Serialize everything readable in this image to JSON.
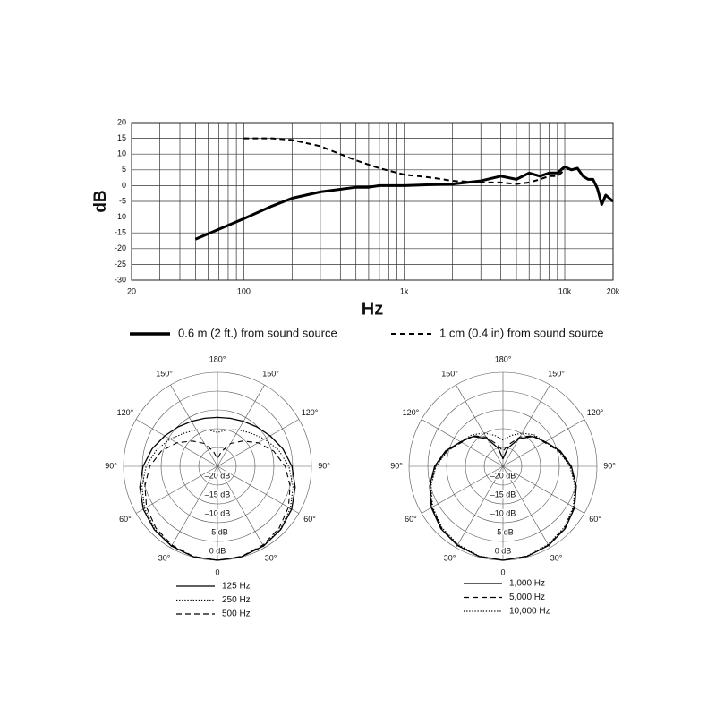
{
  "chart_data": [
    {
      "type": "line",
      "ylabel": "dB",
      "xlabel": "Hz",
      "xscale": "log",
      "grid": true,
      "xlim": [
        20,
        20000
      ],
      "ylim": [
        -30,
        20
      ],
      "xticks": [
        20,
        100,
        {
          "value": 1000,
          "label": "1k"
        },
        {
          "value": 10000,
          "label": "10k"
        },
        {
          "value": 20000,
          "label": "20k"
        }
      ],
      "xminor": [
        30,
        40,
        50,
        60,
        70,
        80,
        90,
        200,
        300,
        400,
        500,
        600,
        700,
        800,
        900,
        2000,
        3000,
        4000,
        5000,
        6000,
        7000,
        8000,
        9000
      ],
      "yticks": [
        20,
        15,
        10,
        5,
        0,
        -5,
        -10,
        -15,
        -20,
        -25,
        -30
      ],
      "series": [
        {
          "name": "0.6 m (2 ft.) from sound source",
          "color": "#000000",
          "style": "solid",
          "x": [
            50,
            100,
            150,
            200,
            300,
            500,
            600,
            700,
            1000,
            1500,
            2000,
            3000,
            4000,
            5000,
            6000,
            7000,
            8000,
            9000,
            10000,
            11000,
            12000,
            13000,
            14000,
            15000,
            16000,
            17000,
            18000,
            20000
          ],
          "values": [
            -17,
            -10.5,
            -6.5,
            -4,
            -2,
            -0.5,
            -0.5,
            0,
            0,
            0.3,
            0.5,
            1.5,
            3,
            2,
            4,
            3,
            4,
            4,
            6,
            5,
            5.5,
            3,
            2,
            2,
            -1,
            -6,
            -3,
            -5
          ]
        },
        {
          "name": "1 cm (0.4 in) from sound source",
          "color": "#000000",
          "style": "dashed",
          "x": [
            100,
            150,
            200,
            300,
            500,
            700,
            1000,
            1500,
            2000,
            3000,
            4000,
            5000,
            6000,
            7000,
            8000,
            9000,
            10000
          ],
          "values": [
            15,
            15,
            14.5,
            12.5,
            8,
            5.5,
            3.5,
            2.5,
            1.5,
            1,
            1,
            0.5,
            1,
            2,
            3,
            3,
            5
          ]
        }
      ]
    },
    {
      "type": "polar",
      "rlim": [
        -25,
        0
      ],
      "rticks": [
        {
          "value": 0,
          "label": "0 dB"
        },
        {
          "value": -5,
          "label": "–5 dB"
        },
        {
          "value": -10,
          "label": "–10 dB"
        },
        {
          "value": -15,
          "label": "–15 dB"
        },
        {
          "value": -20,
          "label": "–20 dB"
        }
      ],
      "angle_ticks": [
        0,
        {
          "value": 30,
          "label": "30°"
        },
        {
          "value": 60,
          "label": "60°"
        },
        {
          "value": 90,
          "label": "90°"
        },
        {
          "value": 120,
          "label": "120°"
        },
        {
          "value": 150,
          "label": "150°"
        },
        {
          "value": 180,
          "label": "180°"
        }
      ],
      "angles": [
        0,
        15,
        30,
        45,
        60,
        75,
        90,
        105,
        120,
        135,
        150,
        165,
        180,
        195,
        210,
        225,
        240,
        255,
        270,
        285,
        300,
        315,
        330,
        345
      ],
      "series": [
        {
          "name": "125 Hz",
          "color": "#000000",
          "style": "solid",
          "values": [
            0,
            -0.1,
            -0.5,
            -1.2,
            -2.2,
            -3.6,
            -5.2,
            -7,
            -8.8,
            -10.2,
            -11.2,
            -11.8,
            -12,
            -11.8,
            -11.2,
            -10.2,
            -8.8,
            -7,
            -5.2,
            -3.6,
            -2.2,
            -1.2,
            -0.5,
            -0.1
          ]
        },
        {
          "name": "250 Hz",
          "color": "#000000",
          "style": "dotted",
          "values": [
            0,
            -0.1,
            -0.6,
            -1.4,
            -2.6,
            -4.2,
            -6,
            -8.2,
            -10.5,
            -12.5,
            -13.8,
            -15,
            -16,
            -15,
            -13.8,
            -12.5,
            -10.5,
            -8.2,
            -6,
            -4.2,
            -2.6,
            -1.4,
            -0.6,
            -0.1
          ]
        },
        {
          "name": "500 Hz",
          "color": "#000000",
          "style": "dashed",
          "values": [
            0,
            -0.2,
            -0.8,
            -1.8,
            -3.2,
            -5,
            -7,
            -9.5,
            -12.5,
            -15.5,
            -18,
            -21,
            -23,
            -21,
            -18,
            -15.5,
            -12.5,
            -9.5,
            -7,
            -5,
            -3.2,
            -1.8,
            -0.8,
            -0.2
          ]
        }
      ]
    },
    {
      "type": "polar",
      "rlim": [
        -25,
        0
      ],
      "rticks": [
        {
          "value": 0,
          "label": "0 dB"
        },
        {
          "value": -5,
          "label": "–5 dB"
        },
        {
          "value": -10,
          "label": "–10 dB"
        },
        {
          "value": -15,
          "label": "–15 dB"
        },
        {
          "value": -20,
          "label": "–20 dB"
        }
      ],
      "angle_ticks": [
        0,
        {
          "value": 30,
          "label": "30°"
        },
        {
          "value": 60,
          "label": "60°"
        },
        {
          "value": 90,
          "label": "90°"
        },
        {
          "value": 120,
          "label": "120°"
        },
        {
          "value": 150,
          "label": "150°"
        },
        {
          "value": 180,
          "label": "180°"
        }
      ],
      "angles": [
        0,
        15,
        30,
        45,
        60,
        75,
        90,
        105,
        120,
        135,
        150,
        165,
        180,
        195,
        210,
        225,
        240,
        255,
        270,
        285,
        300,
        315,
        330,
        345
      ],
      "series": [
        {
          "name": "1,000 Hz",
          "color": "#000000",
          "style": "solid",
          "values": [
            0,
            -0.2,
            -0.7,
            -1.6,
            -3,
            -4.8,
            -6.8,
            -9.2,
            -12,
            -13.8,
            -16.5,
            -20,
            -23,
            -20,
            -16.5,
            -13.8,
            -12,
            -9.2,
            -6.8,
            -4.8,
            -3,
            -1.6,
            -0.7,
            -0.2
          ]
        },
        {
          "name": "5,000 Hz",
          "color": "#000000",
          "style": "dashed",
          "values": [
            0,
            -0.2,
            -0.8,
            -1.8,
            -3.2,
            -5,
            -7,
            -9.5,
            -12.3,
            -13.5,
            -16,
            -19,
            -21,
            -19,
            -16,
            -13.5,
            -12.3,
            -9.5,
            -7,
            -5,
            -3.2,
            -1.8,
            -0.8,
            -0.2
          ]
        },
        {
          "name": "10,000 Hz",
          "color": "#000000",
          "style": "dotted",
          "values": [
            0,
            -0.3,
            -1,
            -2,
            -3.4,
            -5.2,
            -7.2,
            -9.6,
            -12,
            -13.2,
            -14.8,
            -16.5,
            -18,
            -16.5,
            -14.8,
            -13.2,
            -12,
            -9.6,
            -7.2,
            -5.2,
            -3.4,
            -2,
            -1,
            -0.3
          ]
        }
      ]
    }
  ]
}
